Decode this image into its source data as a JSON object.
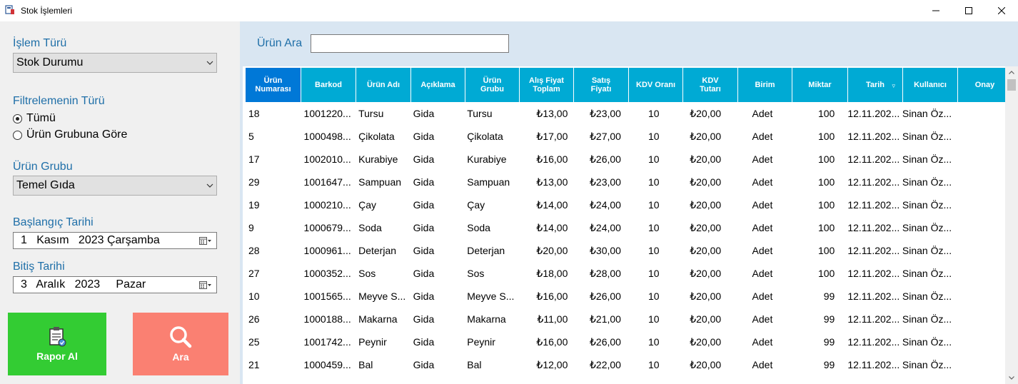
{
  "window": {
    "title": "Stok İşlemleri",
    "icon": "app-icon"
  },
  "left": {
    "islem_turu_label": "İşlem Türü",
    "islem_turu_value": "Stok Durumu",
    "filtre_label": "Filtrelemenin Türü",
    "radio_all": "Tümü",
    "radio_group": "Ürün Grubuna Göre",
    "radio_selected": "all",
    "urun_grubu_label": "Ürün Grubu",
    "urun_grubu_value": "Temel Gıda",
    "baslangic_label": "Başlangıç Tarihi",
    "baslangic_value": "1   Kasım   2023 Çarşamba",
    "bitis_label": "Bitiş Tarihi",
    "bitis_value": "3   Aralık   2023     Pazar",
    "rapor_button": "Rapor Al",
    "ara_button": "Ara"
  },
  "search": {
    "label": "Ürün Ara",
    "value": ""
  },
  "grid": {
    "columns": [
      "Ürün Numarası",
      "Barkod",
      "Ürün Adı",
      "Açıklama",
      "Ürün Grubu",
      "Alış Fiyat Toplam",
      "Satış Fiyatı",
      "KDV Oranı",
      "KDV Tutarı",
      "Birim",
      "Miktar",
      "Tarih",
      "Kullanıcı",
      "Onay"
    ],
    "rows": [
      [
        "18",
        "1001220...",
        "Tursu",
        "Gida",
        "Tursu",
        "₺13,00",
        "₺23,00",
        "10",
        "₺20,00",
        "Adet",
        "100",
        "12.11.202...",
        "Sinan Öz...",
        ""
      ],
      [
        "5",
        "1000498...",
        "Çikolata",
        "Gida",
        "Çikolata",
        "₺17,00",
        "₺27,00",
        "10",
        "₺20,00",
        "Adet",
        "100",
        "12.11.202...",
        "Sinan Öz...",
        ""
      ],
      [
        "17",
        "1002010...",
        "Kurabiye",
        "Gida",
        "Kurabiye",
        "₺16,00",
        "₺26,00",
        "10",
        "₺20,00",
        "Adet",
        "100",
        "12.11.202...",
        "Sinan Öz...",
        ""
      ],
      [
        "29",
        "1001647...",
        "Sampuan",
        "Gida",
        "Sampuan",
        "₺13,00",
        "₺23,00",
        "10",
        "₺20,00",
        "Adet",
        "100",
        "12.11.202...",
        "Sinan Öz...",
        ""
      ],
      [
        "19",
        "1000210...",
        "Çay",
        "Gida",
        "Çay",
        "₺14,00",
        "₺24,00",
        "10",
        "₺20,00",
        "Adet",
        "100",
        "12.11.202...",
        "Sinan Öz...",
        ""
      ],
      [
        "9",
        "1000679...",
        "Soda",
        "Gida",
        "Soda",
        "₺14,00",
        "₺24,00",
        "10",
        "₺20,00",
        "Adet",
        "100",
        "12.11.202...",
        "Sinan Öz...",
        ""
      ],
      [
        "28",
        "1000961...",
        "Deterjan",
        "Gida",
        "Deterjan",
        "₺20,00",
        "₺30,00",
        "10",
        "₺20,00",
        "Adet",
        "100",
        "12.11.202...",
        "Sinan Öz...",
        ""
      ],
      [
        "27",
        "1000352...",
        "Sos",
        "Gida",
        "Sos",
        "₺18,00",
        "₺28,00",
        "10",
        "₺20,00",
        "Adet",
        "100",
        "12.11.202...",
        "Sinan Öz...",
        ""
      ],
      [
        "10",
        "1001565...",
        "Meyve S...",
        "Gida",
        "Meyve S...",
        "₺16,00",
        "₺26,00",
        "10",
        "₺20,00",
        "Adet",
        "99",
        "12.11.202...",
        "Sinan Öz...",
        ""
      ],
      [
        "26",
        "1000188...",
        "Makarna",
        "Gida",
        "Makarna",
        "₺11,00",
        "₺21,00",
        "10",
        "₺20,00",
        "Adet",
        "99",
        "12.11.202...",
        "Sinan Öz...",
        ""
      ],
      [
        "25",
        "1001742...",
        "Peynir",
        "Gida",
        "Peynir",
        "₺16,00",
        "₺26,00",
        "10",
        "₺20,00",
        "Adet",
        "99",
        "12.11.202...",
        "Sinan Öz...",
        ""
      ],
      [
        "21",
        "1000459...",
        "Bal",
        "Gida",
        "Bal",
        "₺12,00",
        "₺22,00",
        "10",
        "₺20,00",
        "Adet",
        "99",
        "12.11.202...",
        "Sinan Öz...",
        ""
      ]
    ]
  },
  "colors": {
    "header_bg": "#00aad4",
    "header_selected_bg": "#0078d7",
    "label_blue": "#1f6fa8",
    "rapor_bg": "#33cc33",
    "ara_bg": "#fa8072",
    "search_bg": "#d9e6f2"
  }
}
